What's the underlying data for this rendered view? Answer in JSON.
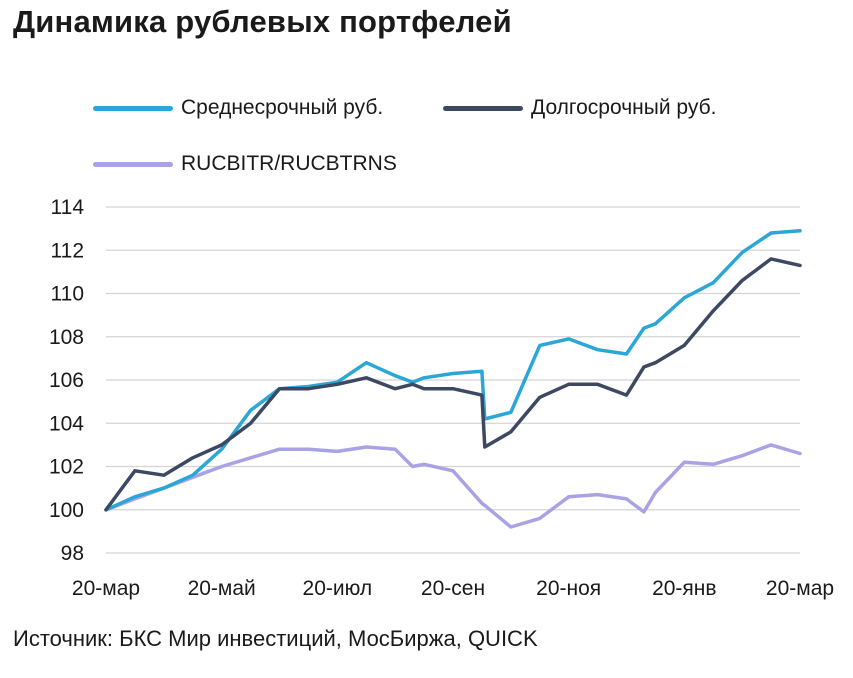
{
  "title": "Динамика рублевых портфелей",
  "source": "Источник: БКС Мир инвестиций, МосБиржа, QUICK",
  "chart_data": {
    "type": "line",
    "title": "Динамика рублевых портфелей",
    "xlabel": "",
    "ylabel": "",
    "x_ticks": [
      "20-мар",
      "20-май",
      "20-июл",
      "20-сен",
      "20-ноя",
      "20-янв",
      "20-мар"
    ],
    "y_ticks": [
      98,
      100,
      102,
      104,
      106,
      108,
      110,
      112,
      114
    ],
    "ylim": [
      98,
      114
    ],
    "x_months": [
      0,
      2,
      4,
      6,
      8,
      10,
      12
    ],
    "grid": "horizontal",
    "legend_position": "top",
    "x": [
      0,
      0.5,
      1,
      1.5,
      2,
      2.5,
      3,
      3.5,
      4,
      4.5,
      5,
      5.3,
      5.5,
      6,
      6.5,
      6.55,
      7,
      7.5,
      8,
      8.5,
      9,
      9.3,
      9.5,
      10,
      10.5,
      11,
      11.5,
      12
    ],
    "series": [
      {
        "name": "Среднесрочный руб.",
        "color": "#2aa7d6",
        "values": [
          100.0,
          100.6,
          101.0,
          101.6,
          102.8,
          104.6,
          105.6,
          105.7,
          105.9,
          106.8,
          106.2,
          105.9,
          106.1,
          106.3,
          106.4,
          104.2,
          104.5,
          107.6,
          107.9,
          107.4,
          107.2,
          108.4,
          108.6,
          109.8,
          110.5,
          111.9,
          112.8,
          112.9
        ]
      },
      {
        "name": "Долгосрочный руб.",
        "color": "#3d4862",
        "values": [
          100.0,
          101.8,
          101.6,
          102.4,
          103.0,
          104.0,
          105.6,
          105.6,
          105.8,
          106.1,
          105.6,
          105.8,
          105.6,
          105.6,
          105.3,
          102.9,
          103.6,
          105.2,
          105.8,
          105.8,
          105.3,
          106.6,
          106.8,
          107.6,
          109.2,
          110.6,
          111.6,
          111.3
        ]
      },
      {
        "name": "RUCBITR/RUCBTRNS",
        "color": "#a9a3e6",
        "values": [
          100.0,
          100.5,
          101.0,
          101.5,
          102.0,
          102.4,
          102.8,
          102.8,
          102.7,
          102.9,
          102.8,
          102.0,
          102.1,
          101.8,
          100.3,
          100.2,
          99.2,
          99.6,
          100.6,
          100.7,
          100.5,
          99.9,
          100.8,
          102.2,
          102.1,
          102.5,
          103.0,
          102.6
        ]
      }
    ]
  }
}
